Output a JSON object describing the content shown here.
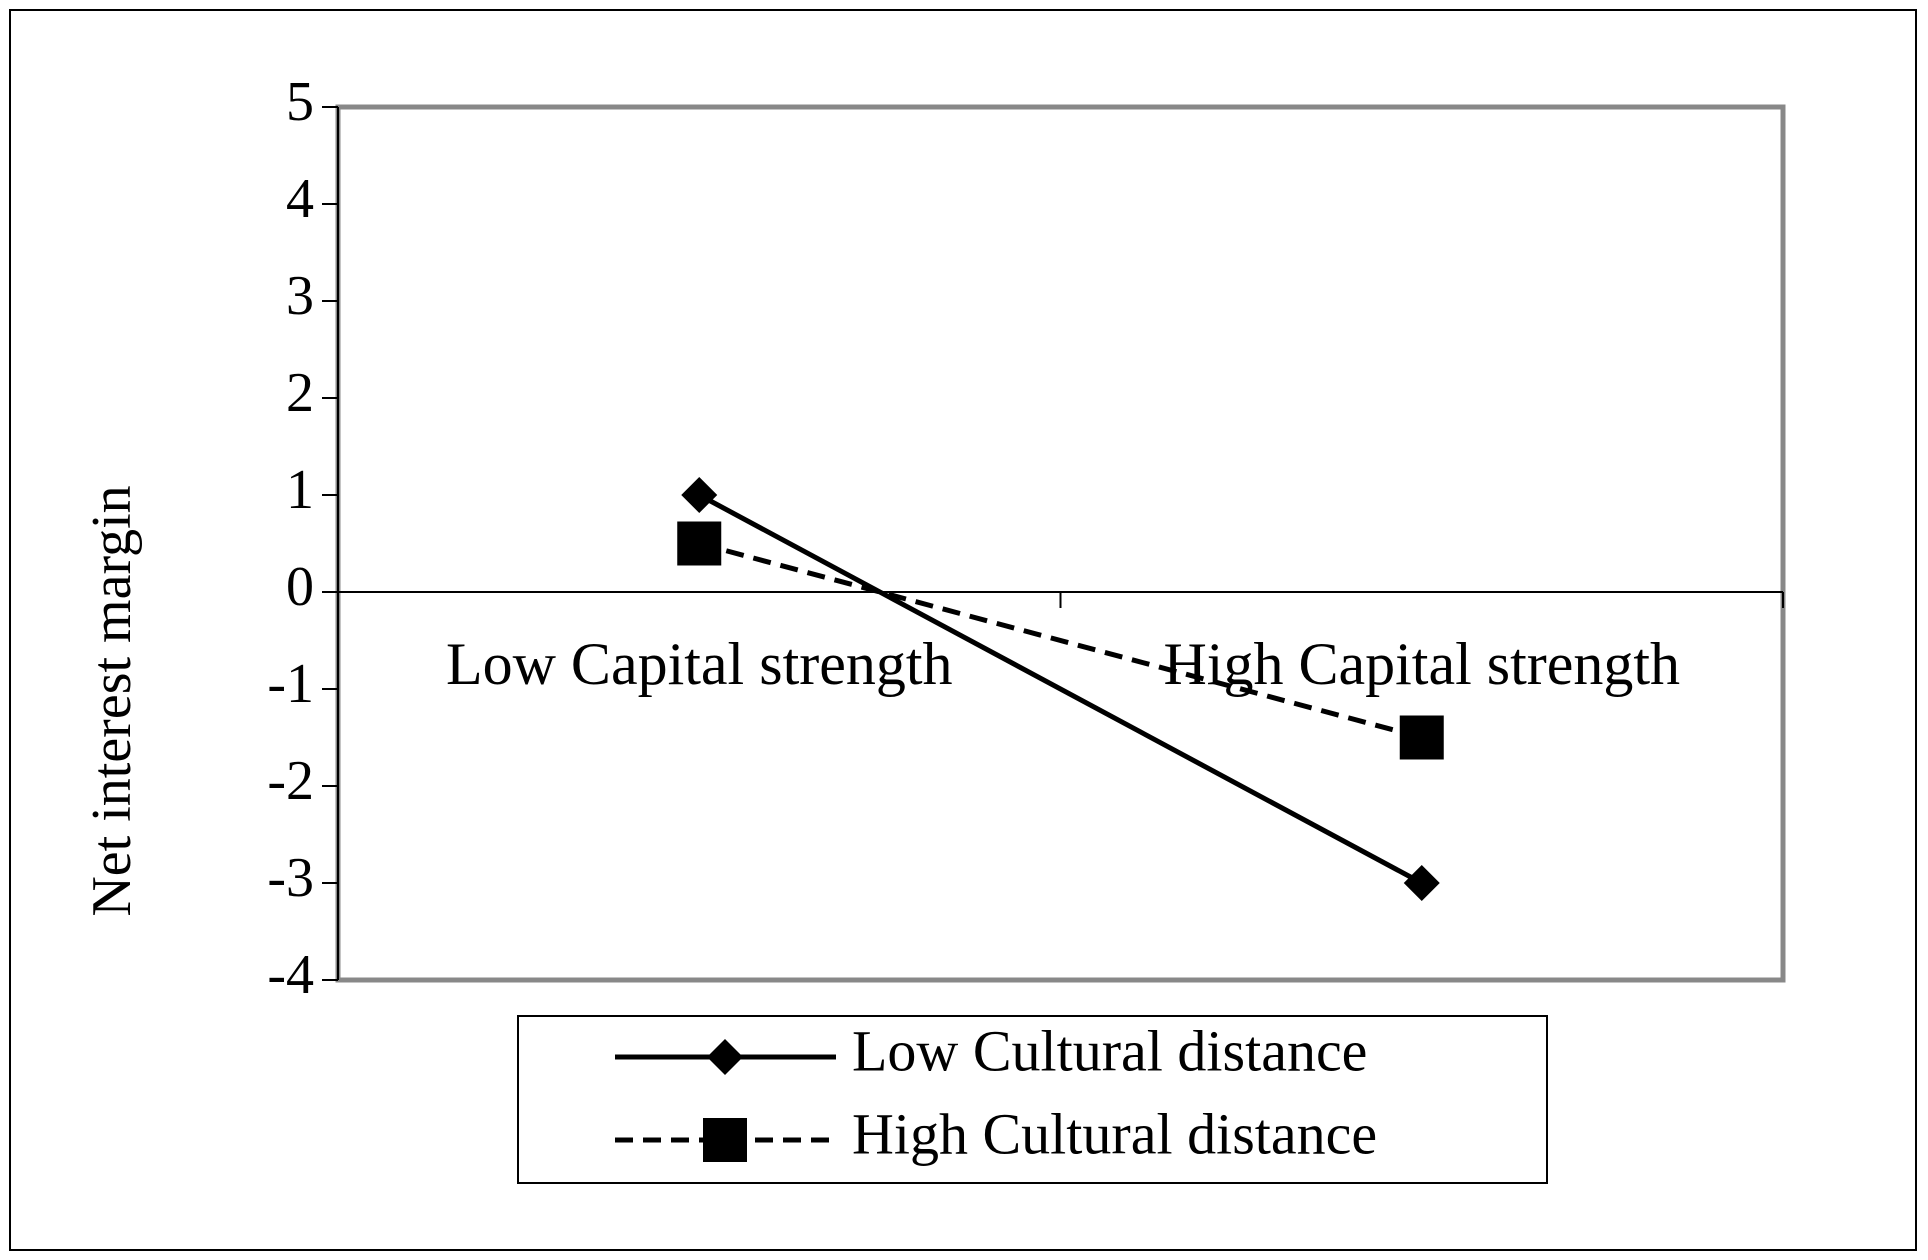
{
  "chart_data": {
    "type": "line",
    "y_label": "Net interest margin",
    "categories": [
      "Low Capital strength",
      "High Capital strength"
    ],
    "series": [
      {
        "name": "Low Cultural distance",
        "color": "#000000",
        "line_style": "solid",
        "marker": "diamond",
        "values": [
          1,
          -3
        ]
      },
      {
        "name": "High Cultural distance",
        "color": "#000000",
        "line_style": "dashed",
        "marker": "square",
        "values": [
          0.5,
          -1.5
        ]
      }
    ],
    "ylim": [
      -4,
      5
    ],
    "yticks": [
      -4,
      -3,
      -2,
      -1,
      0,
      1,
      2,
      3,
      4,
      5
    ],
    "legend": "bottom"
  }
}
